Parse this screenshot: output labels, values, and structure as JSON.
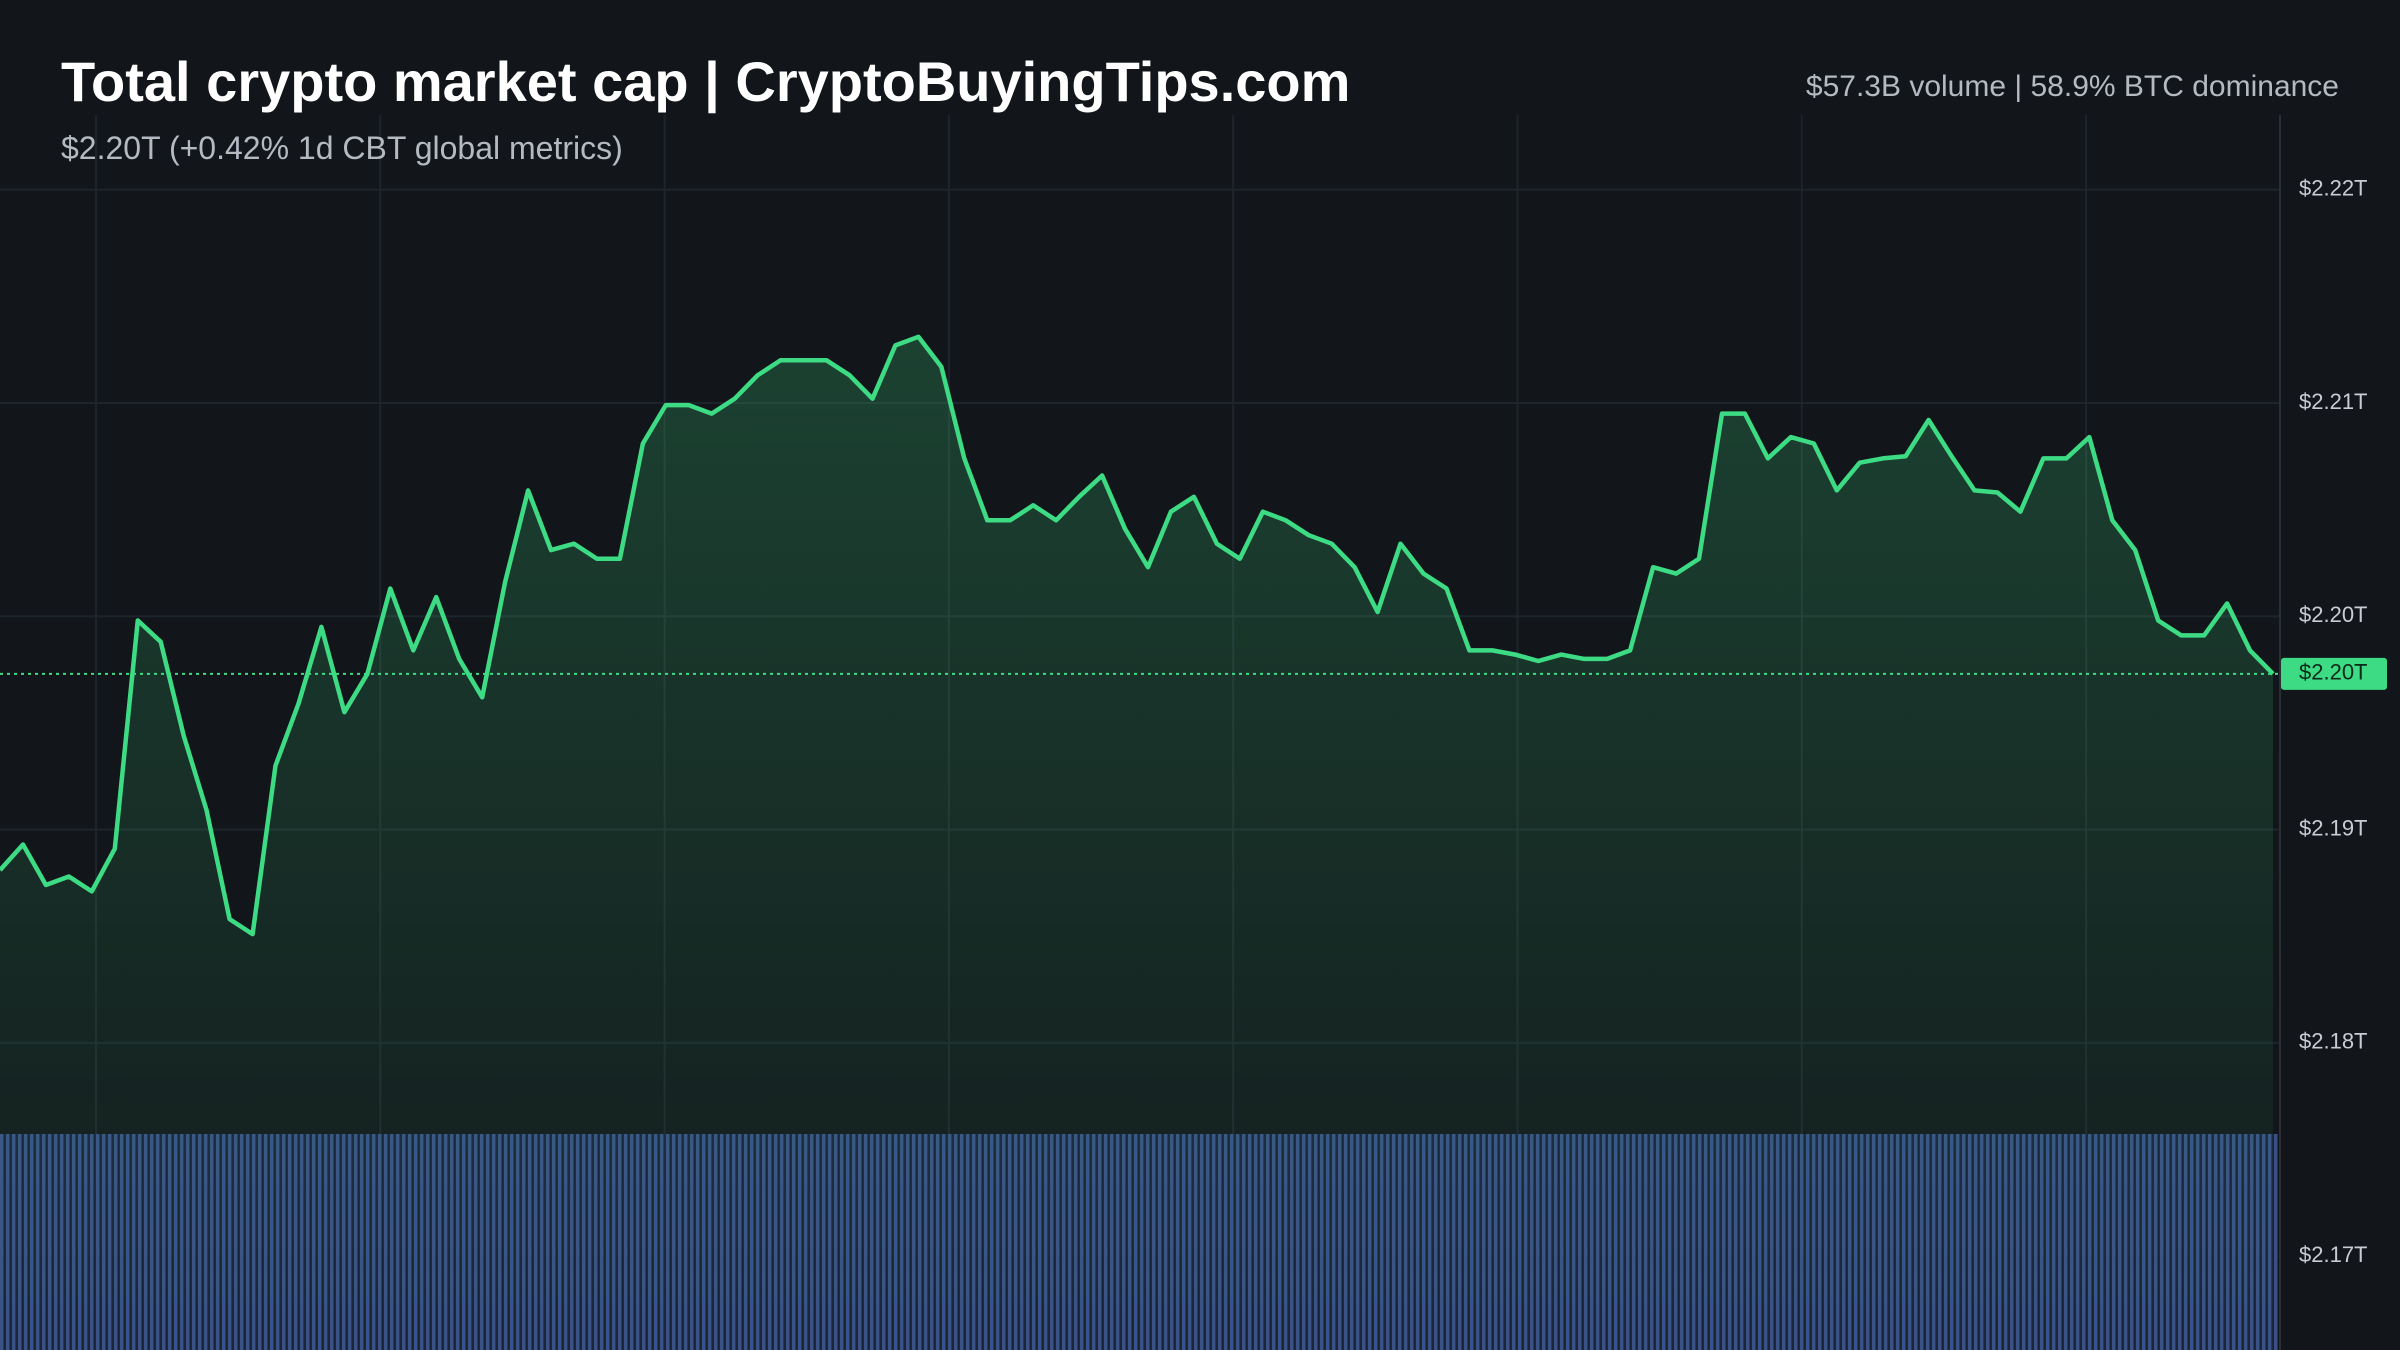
{
  "chart_data": {
    "type": "area",
    "title": "Total crypto market cap | CryptoBuyingTips.com",
    "subtitle": "$2.20T (+0.42% 1d CBT global metrics)",
    "stats": "$57.3B volume | 58.9% BTC dominance",
    "color": "#3ddc84",
    "grid": true,
    "ylim": [
      2.1656,
      2.2235
    ],
    "yticks": [
      {
        "value": 2.17,
        "label": "$2.17T"
      },
      {
        "value": 2.18,
        "label": "$2.18T"
      },
      {
        "value": 2.19,
        "label": "$2.19T"
      },
      {
        "value": 2.2,
        "label": "$2.20T"
      },
      {
        "value": 2.21,
        "label": "$2.21T"
      },
      {
        "value": 2.22,
        "label": "$2.22T"
      }
    ],
    "last_label": "$2.20T",
    "values": [
      2.1881,
      2.1893,
      2.1874,
      2.1878,
      2.1871,
      2.1891,
      2.1998,
      2.1988,
      2.1944,
      2.1909,
      2.1858,
      2.1851,
      2.193,
      2.1959,
      2.1995,
      2.1955,
      2.1973,
      2.2013,
      2.1984,
      2.2009,
      2.198,
      2.1962,
      2.2016,
      2.2059,
      2.2031,
      2.2034,
      2.2027,
      2.2027,
      2.2081,
      2.2099,
      2.2099,
      2.2095,
      2.2102,
      2.2113,
      2.212,
      2.212,
      2.212,
      2.2113,
      2.2102,
      2.2127,
      2.2131,
      2.2117,
      2.2074,
      2.2045,
      2.2045,
      2.2052,
      2.2045,
      2.2056,
      2.2066,
      2.2041,
      2.2023,
      2.2049,
      2.2056,
      2.2034,
      2.2027,
      2.2049,
      2.2045,
      2.2038,
      2.2034,
      2.2023,
      2.2002,
      2.2034,
      2.202,
      2.2013,
      2.1984,
      2.1984,
      2.1982,
      2.1979,
      2.1982,
      2.198,
      2.198,
      2.1984,
      2.2023,
      2.202,
      2.2027,
      2.2095,
      2.2095,
      2.2074,
      2.2084,
      2.2081,
      2.2059,
      2.2072,
      2.2074,
      2.2075,
      2.2092,
      2.2075,
      2.2059,
      2.2058,
      2.2049,
      2.2074,
      2.2074,
      2.2084,
      2.2045,
      2.2031,
      2.1998,
      2.1991,
      2.1991,
      2.2006,
      2.1984,
      2.1973
    ]
  }
}
